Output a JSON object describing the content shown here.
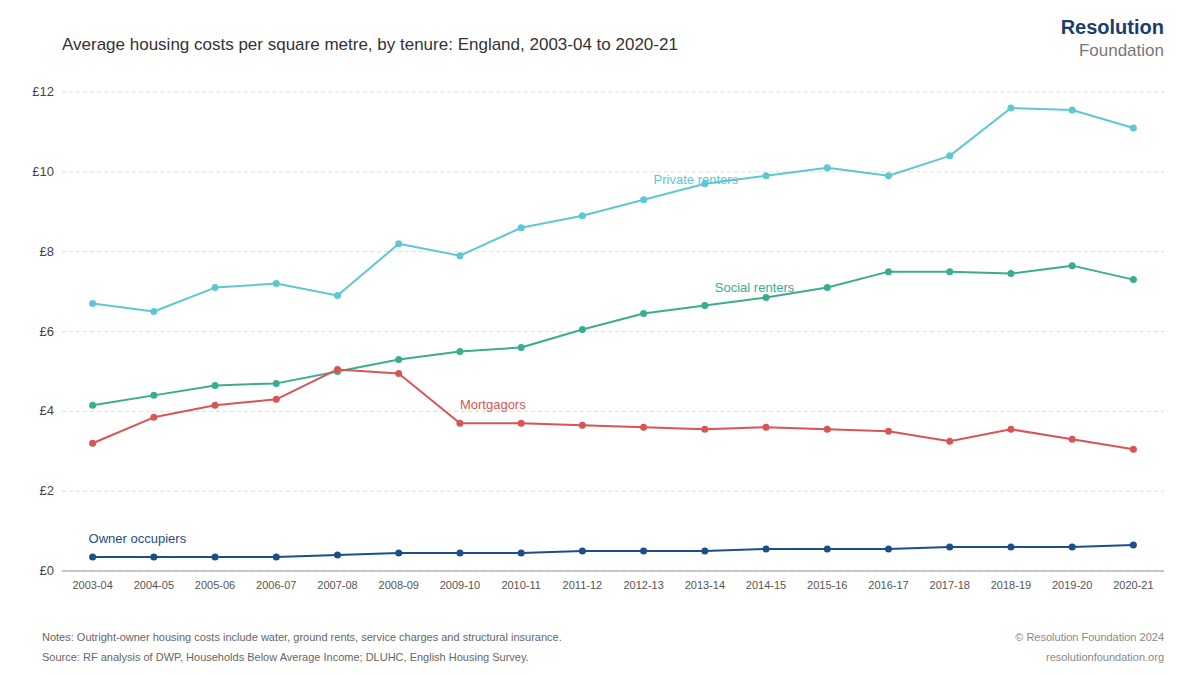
{
  "chart_data": {
    "type": "line",
    "title": "Average housing costs per square metre, by tenure: England, 2003-04 to 2020-21",
    "categories": [
      "2003-04",
      "2004-05",
      "2005-06",
      "2006-07",
      "2007-08",
      "2008-09",
      "2009-10",
      "2010-11",
      "2011-12",
      "2012-13",
      "2013-14",
      "2014-15",
      "2015-16",
      "2016-17",
      "2017-18",
      "2018-19",
      "2019-20",
      "2020-21"
    ],
    "series": [
      {
        "name": "Private renters",
        "color": "#5dc8d4",
        "marker": "circle",
        "values": [
          6.7,
          6.5,
          7.1,
          7.2,
          6.9,
          8.2,
          7.9,
          8.6,
          8.9,
          9.3,
          9.7,
          9.9,
          10.1,
          9.9,
          10.4,
          11.6,
          11.55,
          11.1
        ]
      },
      {
        "name": "Social renters",
        "color": "#3aad8f",
        "marker": "circle",
        "values": [
          4.15,
          4.4,
          4.65,
          4.7,
          5.0,
          5.3,
          5.5,
          5.6,
          6.05,
          6.45,
          6.65,
          6.85,
          7.1,
          7.5,
          7.5,
          7.45,
          7.65,
          7.3
        ]
      },
      {
        "name": "Mortgagors",
        "color": "#d95555",
        "marker": "circle",
        "values": [
          3.2,
          3.85,
          4.15,
          4.3,
          5.05,
          4.95,
          3.7,
          3.7,
          3.65,
          3.6,
          3.55,
          3.6,
          3.55,
          3.5,
          3.25,
          3.55,
          3.3,
          3.05
        ]
      },
      {
        "name": "Owner occupiers",
        "color": "#1b4f8a",
        "marker": "circle",
        "values": [
          0.35,
          0.35,
          0.35,
          0.35,
          0.4,
          0.45,
          0.45,
          0.45,
          0.5,
          0.5,
          0.5,
          0.55,
          0.55,
          0.55,
          0.6,
          0.6,
          0.6,
          0.65
        ]
      }
    ],
    "ylim": [
      0,
      12
    ],
    "yticks": [
      {
        "value": 0,
        "label": "£0"
      },
      {
        "value": 2,
        "label": "£2"
      },
      {
        "value": 4,
        "label": "£4"
      },
      {
        "value": 6,
        "label": "£6"
      },
      {
        "value": 8,
        "label": "£8"
      },
      {
        "value": 10,
        "label": "£10"
      },
      {
        "value": 12,
        "label": "£12"
      }
    ],
    "grid": true,
    "annotations": [
      {
        "text": "Notes: Outright-owner housing costs include water, ground rents, service charges and structural insurance.",
        "color": "#666666"
      },
      {
        "text": "Source: RF analysis of DWP, Households Below Average Income; DLUHC, English Housing Survey.",
        "color": "#666666"
      },
      {
        "text": "© Resolution Foundation 2024",
        "color": "#888888"
      },
      {
        "text": "resolutionfoundation.org",
        "color": "#888888"
      },
      {
        "text": "Resolution",
        "color": "#1b3d6e"
      },
      {
        "text": "Foundation",
        "color": "#777777"
      }
    ]
  }
}
